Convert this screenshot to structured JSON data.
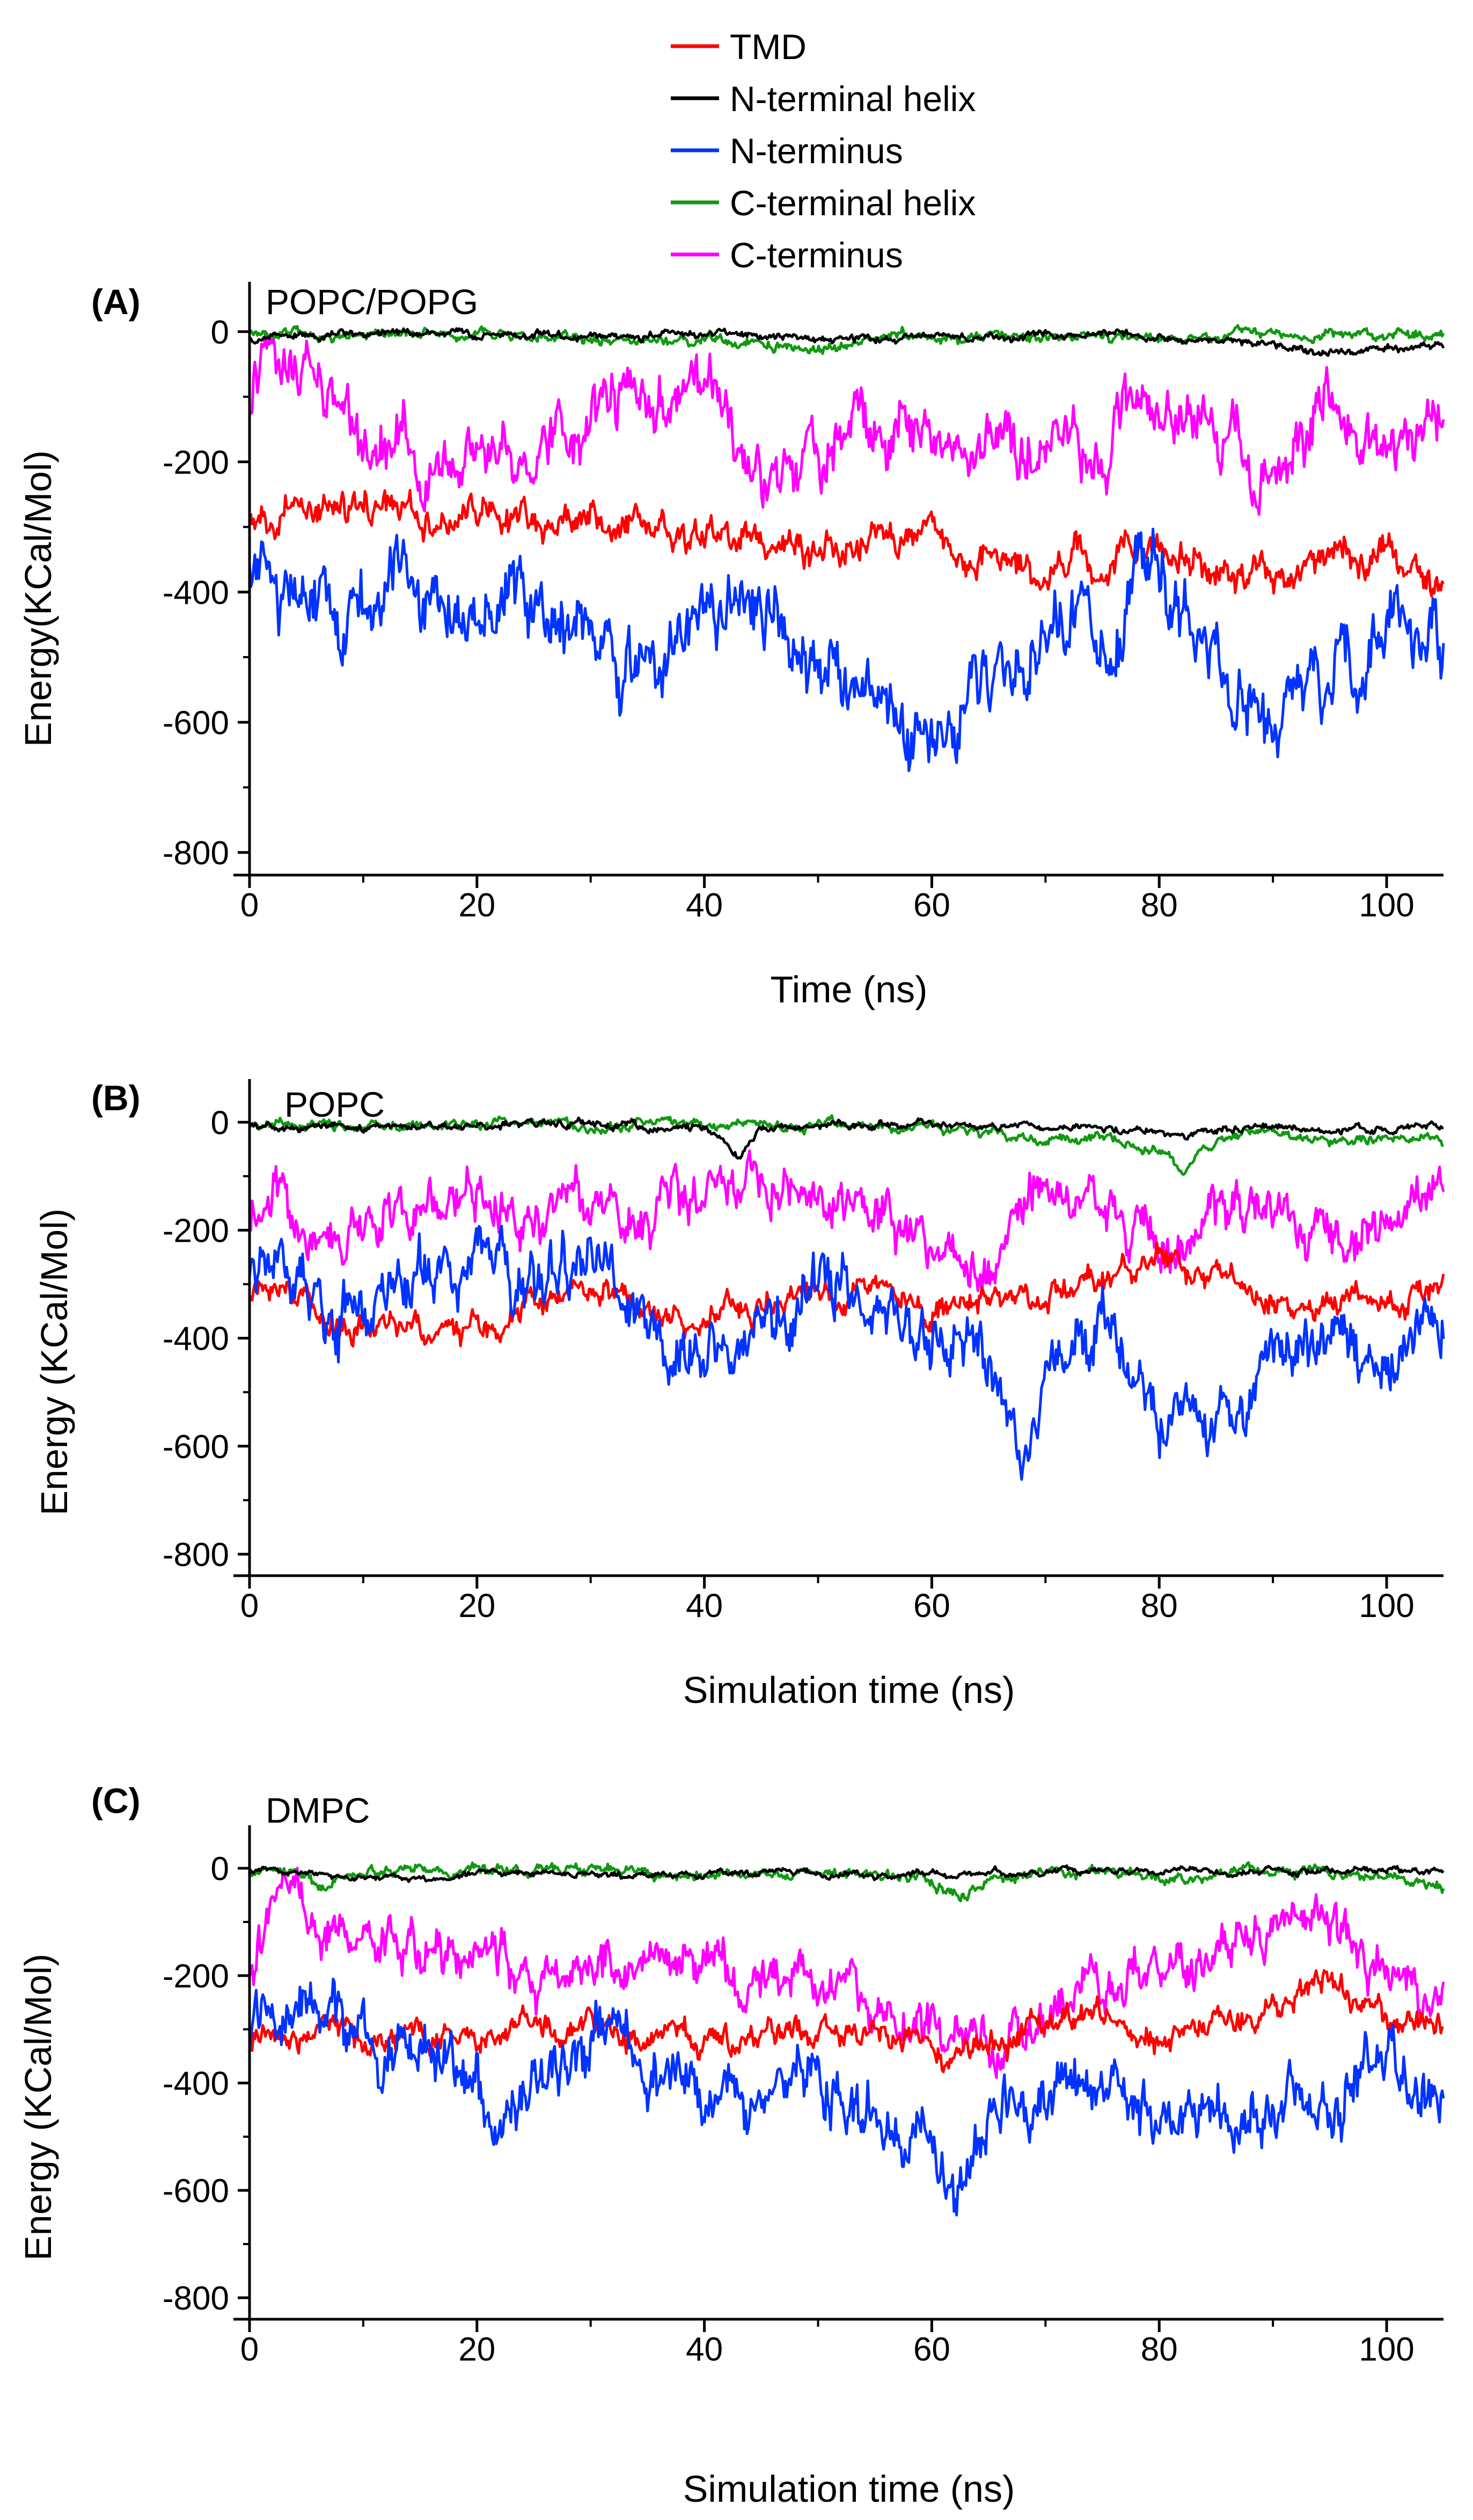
{
  "legend": [
    {
      "name": "TMD",
      "color": "#ff0000"
    },
    {
      "name": "N-terminal helix",
      "color": "#000000"
    },
    {
      "name": "N-terminus",
      "color": "#0033ff"
    },
    {
      "name": "C-terminal helix",
      "color": "#119911"
    },
    {
      "name": "C-terminus",
      "color": "#ff00ff"
    }
  ],
  "chart_data": [
    {
      "type": "line",
      "panel": "(A)",
      "title": "POPC/POPG",
      "xlabel": "Time (ns)",
      "ylabel": "Energy(KCal/Mol)",
      "xlim": [
        0,
        105
      ],
      "ylim": [
        -810,
        60
      ],
      "xticks": [
        0,
        20,
        40,
        60,
        80,
        100
      ],
      "yticks": [
        0,
        -200,
        -400,
        -600,
        -800
      ],
      "series": [
        {
          "name": "TMD",
          "color": "#ff0000",
          "noise": 25,
          "x": [
            0,
            5,
            10,
            15,
            20,
            25,
            30,
            35,
            40,
            45,
            50,
            55,
            60,
            65,
            70,
            75,
            80,
            85,
            90,
            95,
            100,
            105
          ],
          "values": [
            -300,
            -290,
            -270,
            -275,
            -285,
            -290,
            -285,
            -300,
            -310,
            -330,
            -340,
            -320,
            -310,
            -340,
            -370,
            -350,
            -330,
            -360,
            -380,
            -340,
            -350,
            -400
          ]
        },
        {
          "name": "N-terminal helix",
          "color": "#000000",
          "noise": 6,
          "x": [
            0,
            5,
            10,
            15,
            20,
            25,
            30,
            35,
            40,
            45,
            50,
            55,
            60,
            65,
            70,
            75,
            80,
            85,
            90,
            95,
            100,
            105
          ],
          "values": [
            -10,
            -5,
            -3,
            -5,
            -8,
            -5,
            -4,
            -6,
            -5,
            -10,
            -12,
            -10,
            -8,
            -8,
            -6,
            -5,
            -10,
            -10,
            -20,
            -30,
            -25,
            -25
          ]
        },
        {
          "name": "N-terminus",
          "color": "#0033ff",
          "noise": 55,
          "x": [
            0,
            5,
            10,
            15,
            20,
            25,
            30,
            35,
            40,
            45,
            50,
            55,
            60,
            65,
            70,
            75,
            80,
            85,
            90,
            95,
            100,
            105
          ],
          "values": [
            -380,
            -400,
            -420,
            -390,
            -410,
            -380,
            -470,
            -500,
            -460,
            -440,
            -520,
            -560,
            -620,
            -540,
            -480,
            -440,
            -360,
            -540,
            -580,
            -520,
            -450,
            -530
          ]
        },
        {
          "name": "C-terminal helix",
          "color": "#119911",
          "noise": 8,
          "x": [
            0,
            5,
            10,
            15,
            20,
            25,
            30,
            35,
            40,
            45,
            50,
            55,
            60,
            65,
            70,
            75,
            80,
            85,
            90,
            95,
            100,
            105
          ],
          "values": [
            -5,
            -5,
            -8,
            -5,
            -6,
            -8,
            -12,
            -15,
            -10,
            -20,
            -25,
            -10,
            -8,
            -10,
            -8,
            -6,
            -8,
            -6,
            -5,
            -5,
            -5,
            -5
          ]
        },
        {
          "name": "C-terminus",
          "color": "#ff00ff",
          "noise": 45,
          "x": [
            0,
            2,
            5,
            10,
            15,
            20,
            25,
            30,
            35,
            40,
            45,
            50,
            55,
            60,
            65,
            70,
            75,
            80,
            85,
            90,
            95,
            100,
            105
          ],
          "values": [
            -120,
            -20,
            -60,
            -180,
            -200,
            -170,
            -180,
            -120,
            -110,
            -100,
            -250,
            -200,
            -120,
            -170,
            -180,
            -150,
            -180,
            -90,
            -160,
            -200,
            -120,
            -180,
            -140
          ]
        }
      ]
    },
    {
      "type": "line",
      "panel": "(B)",
      "title": "POPC",
      "xlabel": "Simulation time (ns)",
      "ylabel": "Energy (KCal/Mol)",
      "xlim": [
        0,
        105
      ],
      "ylim": [
        -810,
        60
      ],
      "xticks": [
        0,
        20,
        40,
        60,
        80,
        100
      ],
      "yticks": [
        0,
        -200,
        -400,
        -600,
        -800
      ],
      "series": [
        {
          "name": "TMD",
          "color": "#ff0000",
          "noise": 25,
          "x": [
            0,
            5,
            10,
            15,
            20,
            22,
            25,
            30,
            35,
            40,
            45,
            50,
            55,
            60,
            65,
            70,
            75,
            80,
            85,
            90,
            95,
            100,
            105
          ],
          "values": [
            -320,
            -340,
            -370,
            -390,
            -380,
            -410,
            -330,
            -320,
            -350,
            -370,
            -340,
            -310,
            -330,
            -350,
            -320,
            -300,
            -290,
            -260,
            -290,
            -330,
            -320,
            -330,
            -310
          ]
        },
        {
          "name": "N-terminal helix",
          "color": "#000000",
          "noise": 7,
          "x": [
            0,
            5,
            10,
            15,
            20,
            25,
            30,
            35,
            40,
            43,
            45,
            50,
            55,
            60,
            65,
            70,
            75,
            80,
            82,
            85,
            90,
            95,
            100,
            105
          ],
          "values": [
            -5,
            -10,
            -8,
            -5,
            -5,
            -3,
            -5,
            -8,
            -10,
            -60,
            -15,
            -5,
            -5,
            -3,
            -5,
            -8,
            -10,
            -15,
            -30,
            -8,
            -5,
            -10,
            -12,
            -10
          ]
        },
        {
          "name": "N-terminus",
          "color": "#0033ff",
          "noise": 55,
          "x": [
            0,
            5,
            10,
            15,
            20,
            25,
            30,
            35,
            40,
            45,
            50,
            55,
            60,
            65,
            68,
            70,
            75,
            80,
            85,
            90,
            95,
            100,
            105
          ],
          "values": [
            -260,
            -300,
            -330,
            -280,
            -250,
            -300,
            -260,
            -380,
            -480,
            -400,
            -280,
            -340,
            -420,
            -430,
            -640,
            -480,
            -400,
            -540,
            -570,
            -440,
            -400,
            -460,
            -400
          ]
        },
        {
          "name": "C-terminal helix",
          "color": "#119911",
          "noise": 9,
          "x": [
            0,
            5,
            10,
            15,
            20,
            25,
            30,
            35,
            40,
            45,
            50,
            55,
            60,
            65,
            70,
            75,
            80,
            82,
            85,
            90,
            95,
            100,
            105
          ],
          "values": [
            -5,
            -5,
            -6,
            -5,
            -5,
            -5,
            -6,
            -5,
            -5,
            -5,
            -8,
            -10,
            -10,
            -20,
            -40,
            -30,
            -50,
            -90,
            -30,
            -20,
            -40,
            -30,
            -35
          ]
        },
        {
          "name": "C-terminus",
          "color": "#ff00ff",
          "noise": 45,
          "x": [
            0,
            3,
            5,
            10,
            15,
            20,
            25,
            30,
            35,
            40,
            45,
            50,
            55,
            60,
            65,
            70,
            75,
            80,
            85,
            90,
            95,
            100,
            105
          ],
          "values": [
            -150,
            -120,
            -250,
            -180,
            -150,
            -140,
            -200,
            -160,
            -180,
            -110,
            -120,
            -100,
            -160,
            -220,
            -260,
            -100,
            -140,
            -250,
            -140,
            -170,
            -250,
            -190,
            -110
          ]
        }
      ]
    },
    {
      "type": "line",
      "panel": "(C)",
      "title": "DMPC",
      "xlabel": "Simulation time (ns)",
      "ylabel": "Energy (KCal/Mol)",
      "xlim": [
        0,
        105
      ],
      "ylim": [
        -810,
        60
      ],
      "xticks": [
        0,
        20,
        40,
        60,
        80,
        100
      ],
      "yticks": [
        0,
        -200,
        -400,
        -600,
        -800
      ],
      "series": [
        {
          "name": "TMD",
          "color": "#ff0000",
          "noise": 25,
          "x": [
            0,
            5,
            10,
            15,
            20,
            25,
            30,
            35,
            40,
            45,
            50,
            55,
            60,
            65,
            70,
            75,
            80,
            85,
            90,
            95,
            100,
            105
          ],
          "values": [
            -310,
            -320,
            -330,
            -300,
            -320,
            -300,
            -290,
            -320,
            -340,
            -310,
            -300,
            -320,
            -340,
            -330,
            -300,
            -290,
            -330,
            -300,
            -260,
            -220,
            -280,
            -300
          ]
        },
        {
          "name": "N-terminal helix",
          "color": "#000000",
          "noise": 6,
          "x": [
            0,
            5,
            10,
            15,
            20,
            25,
            30,
            35,
            40,
            45,
            50,
            55,
            60,
            65,
            70,
            75,
            80,
            85,
            90,
            95,
            100,
            105
          ],
          "values": [
            -5,
            -10,
            -15,
            -25,
            -10,
            -8,
            -10,
            -15,
            -10,
            -8,
            -10,
            -12,
            -8,
            -10,
            -6,
            -5,
            -5,
            -5,
            -5,
            -5,
            -5,
            -5
          ]
        },
        {
          "name": "N-terminus",
          "color": "#0033ff",
          "noise": 55,
          "x": [
            0,
            5,
            10,
            15,
            20,
            22,
            25,
            30,
            35,
            40,
            45,
            50,
            55,
            60,
            62,
            65,
            70,
            75,
            80,
            85,
            90,
            95,
            100,
            105
          ],
          "values": [
            -320,
            -300,
            -290,
            -350,
            -400,
            -460,
            -380,
            -340,
            -360,
            -420,
            -460,
            -400,
            -480,
            -520,
            -620,
            -480,
            -440,
            -400,
            -460,
            -500,
            -440,
            -400,
            -360,
            -440
          ]
        },
        {
          "name": "C-terminal helix",
          "color": "#119911",
          "noise": 10,
          "x": [
            0,
            5,
            6,
            10,
            15,
            20,
            25,
            30,
            35,
            40,
            45,
            50,
            55,
            60,
            63,
            65,
            70,
            75,
            80,
            85,
            90,
            95,
            100,
            105
          ],
          "values": [
            -5,
            -10,
            -40,
            -5,
            -5,
            -5,
            -5,
            -5,
            -8,
            -10,
            -12,
            -10,
            -15,
            -20,
            -50,
            -20,
            -10,
            -10,
            -20,
            -10,
            -8,
            -10,
            -20,
            -30
          ]
        },
        {
          "name": "C-terminus",
          "color": "#ff00ff",
          "noise": 45,
          "x": [
            0,
            3,
            5,
            10,
            15,
            20,
            25,
            30,
            35,
            40,
            45,
            50,
            55,
            60,
            65,
            70,
            75,
            80,
            85,
            90,
            95,
            100,
            105
          ],
          "values": [
            -200,
            -50,
            -100,
            -150,
            -180,
            -140,
            -200,
            -200,
            -170,
            -180,
            -200,
            -220,
            -250,
            -300,
            -330,
            -270,
            -220,
            -200,
            -170,
            -130,
            -110,
            -200,
            -250
          ]
        }
      ]
    }
  ]
}
